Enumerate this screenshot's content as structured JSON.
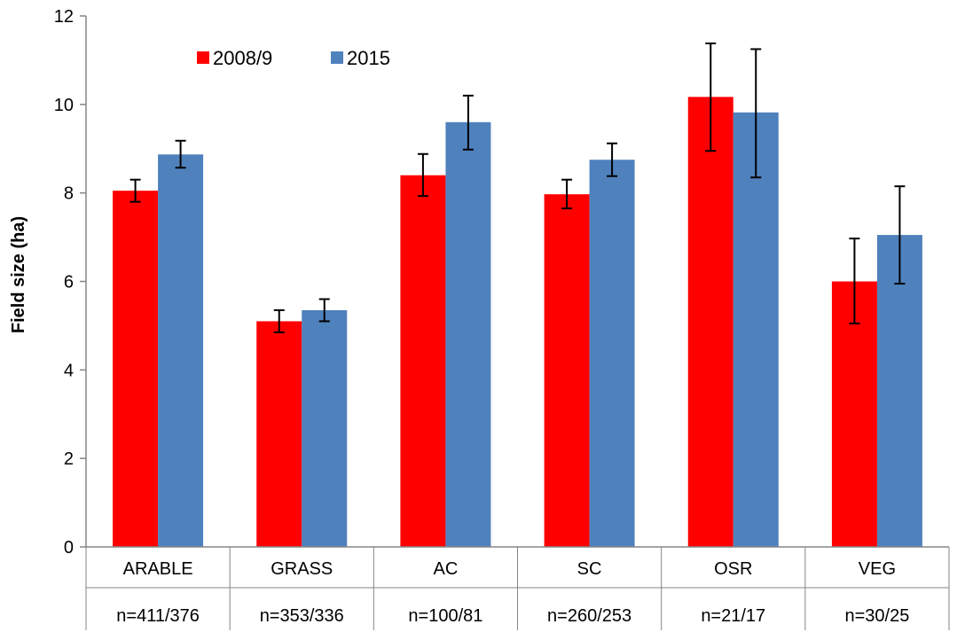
{
  "chart_data": {
    "type": "bar",
    "title": "",
    "xlabel": "",
    "ylabel": "Field size (ha)",
    "ylim": [
      0,
      12
    ],
    "yticks": [
      "0",
      "2",
      "4",
      "6",
      "8",
      "10",
      "12"
    ],
    "grid": false,
    "legend_position": "top-left",
    "categories": [
      "ARABLE",
      "GRASS",
      "AC",
      "SC",
      "OSR",
      "VEG"
    ],
    "sample_sizes": [
      "n=411/376",
      "n=353/336",
      "n=100/81",
      "n=260/253",
      "n=21/17",
      "n=30/25"
    ],
    "series": [
      {
        "name": "2008/9",
        "color": "#ff0000",
        "values": [
          8.05,
          5.1,
          8.4,
          7.97,
          10.17,
          6.0
        ],
        "err_low": [
          7.8,
          4.85,
          7.93,
          7.65,
          8.95,
          5.05
        ],
        "err_high": [
          8.3,
          5.35,
          8.88,
          8.3,
          11.38,
          6.97
        ]
      },
      {
        "name": "2015",
        "color": "#4f81bd",
        "values": [
          8.87,
          5.35,
          9.6,
          8.75,
          9.82,
          7.05
        ],
        "err_low": [
          8.57,
          5.1,
          8.98,
          8.38,
          8.35,
          5.95
        ],
        "err_high": [
          9.18,
          5.6,
          10.2,
          9.12,
          11.25,
          8.15
        ]
      }
    ]
  }
}
